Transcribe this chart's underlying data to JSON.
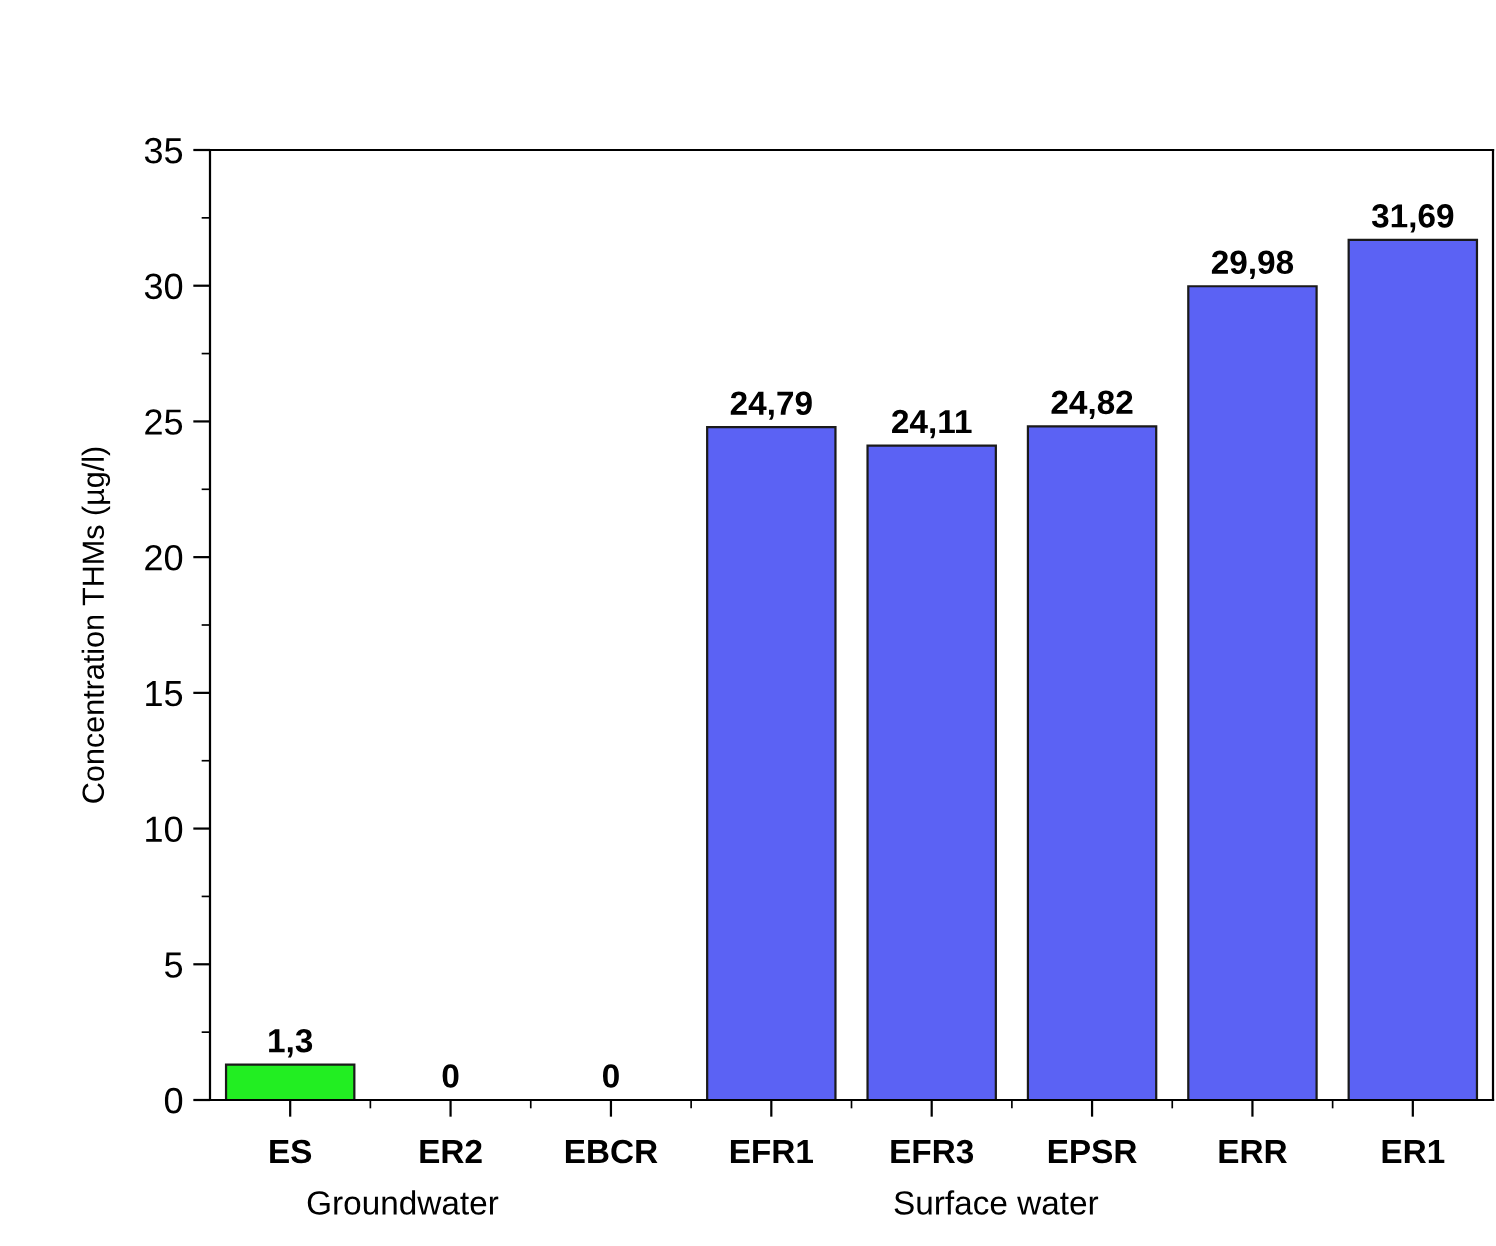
{
  "chart_data": {
    "type": "bar",
    "ylabel": "Concentration THMs (µg/l)",
    "categories": [
      "ES",
      "ER2",
      "EBCR",
      "EFR1",
      "EFR3",
      "EPSR",
      "ERR",
      "ER1"
    ],
    "values": [
      1.3,
      0,
      0,
      24.79,
      24.11,
      24.82,
      29.98,
      31.69
    ],
    "colors": [
      "#22ee22",
      "#5b62f4",
      "#5b62f4",
      "#5b62f4",
      "#5b62f4",
      "#5b62f4",
      "#5b62f4",
      "#5b62f4"
    ],
    "value_labels": [
      "1,3",
      "0",
      "0",
      "24,79",
      "24,11",
      "24,82",
      "29,98",
      "31,69"
    ],
    "ylim": [
      0,
      35
    ],
    "yticks": [
      0,
      5,
      10,
      15,
      20,
      25,
      30,
      35
    ],
    "grid": false,
    "annotations": [
      "Groundwater",
      "Surface water"
    ]
  }
}
